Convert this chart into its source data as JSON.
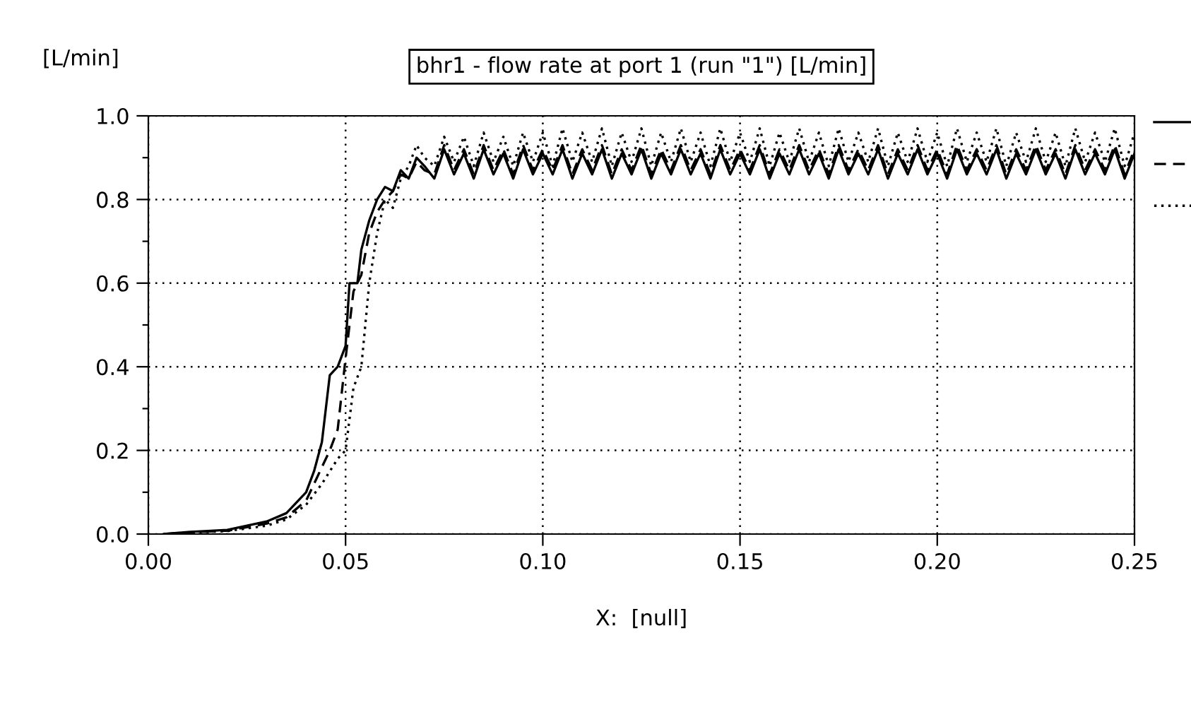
{
  "chart_data": {
    "type": "line",
    "title": "bhr1 - flow rate at port 1 (run \"1\") [L/min]",
    "xlabel": "X:  [null]",
    "ylabel": "[L/min]",
    "xlim": [
      0.0,
      0.25
    ],
    "xticks": [
      {
        "value": 0.0,
        "label": "0.00"
      },
      {
        "value": 0.05,
        "label": "0.05"
      },
      {
        "value": 0.1,
        "label": "0.10"
      },
      {
        "value": 0.15,
        "label": "0.15"
      },
      {
        "value": 0.2,
        "label": "0.20"
      },
      {
        "value": 0.25,
        "label": "0.25"
      }
    ],
    "ylim": [
      0.0,
      1.0
    ],
    "yticks": [
      {
        "value": 0.0,
        "label": "0.0"
      },
      {
        "value": 0.1,
        "label": null
      },
      {
        "value": 0.2,
        "label": "0.2"
      },
      {
        "value": 0.3,
        "label": null
      },
      {
        "value": 0.4,
        "label": "0.4"
      },
      {
        "value": 0.5,
        "label": null
      },
      {
        "value": 0.6,
        "label": "0.6"
      },
      {
        "value": 0.7,
        "label": null
      },
      {
        "value": 0.8,
        "label": "0.8"
      },
      {
        "value": 0.9,
        "label": null
      },
      {
        "value": 1.0,
        "label": "1.0"
      }
    ],
    "grid": true,
    "marker": "none",
    "series": [
      {
        "color": "#000000",
        "line_style": "solid",
        "x": [
          0.004,
          0.01,
          0.02,
          0.03,
          0.035,
          0.04,
          0.042,
          0.044,
          0.045,
          0.046,
          0.048,
          0.05,
          0.051,
          0.053,
          0.054,
          0.056,
          0.058,
          0.06,
          0.062,
          0.064,
          0.066,
          0.068,
          0.07,
          0.0725,
          0.075,
          0.0775,
          0.08,
          0.0825,
          0.085,
          0.0875,
          0.09,
          0.0925,
          0.095,
          0.0975,
          0.1,
          0.1025,
          0.105,
          0.1075,
          0.11,
          0.1125,
          0.115,
          0.1175,
          0.12,
          0.1225,
          0.125,
          0.1275,
          0.13,
          0.1325,
          0.135,
          0.1375,
          0.14,
          0.1425,
          0.145,
          0.1475,
          0.15,
          0.1525,
          0.155,
          0.1575,
          0.16,
          0.1625,
          0.165,
          0.1675,
          0.17,
          0.1725,
          0.175,
          0.1775,
          0.18,
          0.1825,
          0.185,
          0.1875,
          0.19,
          0.1925,
          0.195,
          0.1975,
          0.2,
          0.2025,
          0.205,
          0.2075,
          0.21,
          0.2125,
          0.215,
          0.2175,
          0.22,
          0.2225,
          0.225,
          0.2275,
          0.23,
          0.2325,
          0.235,
          0.2375,
          0.24,
          0.2425,
          0.245,
          0.2475,
          0.25
        ],
        "values": [
          0.0,
          0.005,
          0.01,
          0.03,
          0.05,
          0.1,
          0.15,
          0.22,
          0.3,
          0.38,
          0.4,
          0.45,
          0.6,
          0.6,
          0.68,
          0.75,
          0.8,
          0.83,
          0.82,
          0.87,
          0.85,
          0.9,
          0.88,
          0.85,
          0.92,
          0.86,
          0.91,
          0.85,
          0.92,
          0.86,
          0.91,
          0.85,
          0.92,
          0.86,
          0.91,
          0.86,
          0.92,
          0.85,
          0.91,
          0.86,
          0.92,
          0.85,
          0.91,
          0.86,
          0.92,
          0.85,
          0.91,
          0.86,
          0.92,
          0.86,
          0.91,
          0.85,
          0.92,
          0.86,
          0.91,
          0.86,
          0.92,
          0.85,
          0.91,
          0.86,
          0.92,
          0.86,
          0.91,
          0.85,
          0.92,
          0.86,
          0.91,
          0.86,
          0.92,
          0.85,
          0.91,
          0.86,
          0.92,
          0.86,
          0.91,
          0.85,
          0.92,
          0.86,
          0.91,
          0.86,
          0.92,
          0.85,
          0.91,
          0.86,
          0.92,
          0.86,
          0.91,
          0.85,
          0.92,
          0.86,
          0.91,
          0.86,
          0.92,
          0.85,
          0.91
        ]
      },
      {
        "color": "#000000",
        "line_style": "dashed",
        "x": [
          0.004,
          0.01,
          0.02,
          0.03,
          0.035,
          0.04,
          0.044,
          0.046,
          0.048,
          0.05,
          0.052,
          0.054,
          0.056,
          0.058,
          0.06,
          0.062,
          0.064,
          0.066,
          0.068,
          0.07,
          0.0725,
          0.075,
          0.0775,
          0.08,
          0.0825,
          0.085,
          0.0875,
          0.09,
          0.0925,
          0.095,
          0.0975,
          0.1,
          0.1025,
          0.105,
          0.1075,
          0.11,
          0.1125,
          0.115,
          0.1175,
          0.12,
          0.1225,
          0.125,
          0.1275,
          0.13,
          0.1325,
          0.135,
          0.1375,
          0.14,
          0.1425,
          0.145,
          0.1475,
          0.15,
          0.1525,
          0.155,
          0.1575,
          0.16,
          0.1625,
          0.165,
          0.1675,
          0.17,
          0.1725,
          0.175,
          0.1775,
          0.18,
          0.1825,
          0.185,
          0.1875,
          0.19,
          0.1925,
          0.195,
          0.1975,
          0.2,
          0.2025,
          0.205,
          0.2075,
          0.21,
          0.2125,
          0.215,
          0.2175,
          0.22,
          0.2225,
          0.225,
          0.2275,
          0.23,
          0.2325,
          0.235,
          0.2375,
          0.24,
          0.2425,
          0.245,
          0.2475,
          0.25
        ],
        "values": [
          0.0,
          0.004,
          0.008,
          0.025,
          0.04,
          0.08,
          0.16,
          0.2,
          0.25,
          0.42,
          0.58,
          0.62,
          0.72,
          0.77,
          0.8,
          0.82,
          0.86,
          0.85,
          0.89,
          0.87,
          0.86,
          0.93,
          0.87,
          0.92,
          0.86,
          0.93,
          0.87,
          0.92,
          0.86,
          0.93,
          0.87,
          0.92,
          0.87,
          0.93,
          0.86,
          0.92,
          0.87,
          0.93,
          0.86,
          0.92,
          0.87,
          0.93,
          0.86,
          0.92,
          0.87,
          0.93,
          0.87,
          0.92,
          0.86,
          0.93,
          0.87,
          0.92,
          0.87,
          0.93,
          0.86,
          0.92,
          0.87,
          0.93,
          0.87,
          0.92,
          0.86,
          0.93,
          0.87,
          0.92,
          0.87,
          0.93,
          0.86,
          0.92,
          0.87,
          0.93,
          0.87,
          0.92,
          0.86,
          0.93,
          0.87,
          0.92,
          0.87,
          0.93,
          0.86,
          0.92,
          0.87,
          0.93,
          0.87,
          0.92,
          0.86,
          0.93,
          0.87,
          0.92,
          0.87,
          0.93,
          0.86,
          0.92
        ]
      },
      {
        "color": "#000000",
        "line_style": "dotted",
        "x": [
          0.004,
          0.01,
          0.02,
          0.03,
          0.035,
          0.04,
          0.044,
          0.046,
          0.048,
          0.05,
          0.052,
          0.054,
          0.056,
          0.058,
          0.06,
          0.062,
          0.064,
          0.066,
          0.068,
          0.07,
          0.0725,
          0.075,
          0.0775,
          0.08,
          0.0825,
          0.085,
          0.0875,
          0.09,
          0.0925,
          0.095,
          0.0975,
          0.1,
          0.1025,
          0.105,
          0.1075,
          0.11,
          0.1125,
          0.115,
          0.1175,
          0.12,
          0.1225,
          0.125,
          0.1275,
          0.13,
          0.1325,
          0.135,
          0.1375,
          0.14,
          0.1425,
          0.145,
          0.1475,
          0.15,
          0.1525,
          0.155,
          0.1575,
          0.16,
          0.1625,
          0.165,
          0.1675,
          0.17,
          0.1725,
          0.175,
          0.1775,
          0.18,
          0.1825,
          0.185,
          0.1875,
          0.19,
          0.1925,
          0.195,
          0.1975,
          0.2,
          0.2025,
          0.205,
          0.2075,
          0.21,
          0.2125,
          0.215,
          0.2175,
          0.22,
          0.2225,
          0.225,
          0.2275,
          0.23,
          0.2325,
          0.235,
          0.2375,
          0.24,
          0.2425,
          0.245,
          0.2475,
          0.25
        ],
        "values": [
          0.0,
          0.003,
          0.007,
          0.02,
          0.035,
          0.07,
          0.12,
          0.15,
          0.18,
          0.2,
          0.35,
          0.4,
          0.6,
          0.72,
          0.8,
          0.78,
          0.85,
          0.88,
          0.93,
          0.9,
          0.88,
          0.95,
          0.89,
          0.95,
          0.88,
          0.96,
          0.89,
          0.95,
          0.88,
          0.96,
          0.89,
          0.96,
          0.88,
          0.97,
          0.89,
          0.96,
          0.89,
          0.97,
          0.88,
          0.96,
          0.89,
          0.97,
          0.88,
          0.96,
          0.89,
          0.97,
          0.89,
          0.96,
          0.88,
          0.97,
          0.89,
          0.96,
          0.89,
          0.97,
          0.88,
          0.96,
          0.89,
          0.97,
          0.89,
          0.96,
          0.88,
          0.97,
          0.89,
          0.96,
          0.89,
          0.97,
          0.88,
          0.96,
          0.89,
          0.97,
          0.89,
          0.96,
          0.88,
          0.97,
          0.89,
          0.96,
          0.89,
          0.97,
          0.88,
          0.96,
          0.89,
          0.97,
          0.89,
          0.96,
          0.88,
          0.97,
          0.89,
          0.96,
          0.89,
          0.97,
          0.88,
          0.96
        ]
      }
    ]
  }
}
